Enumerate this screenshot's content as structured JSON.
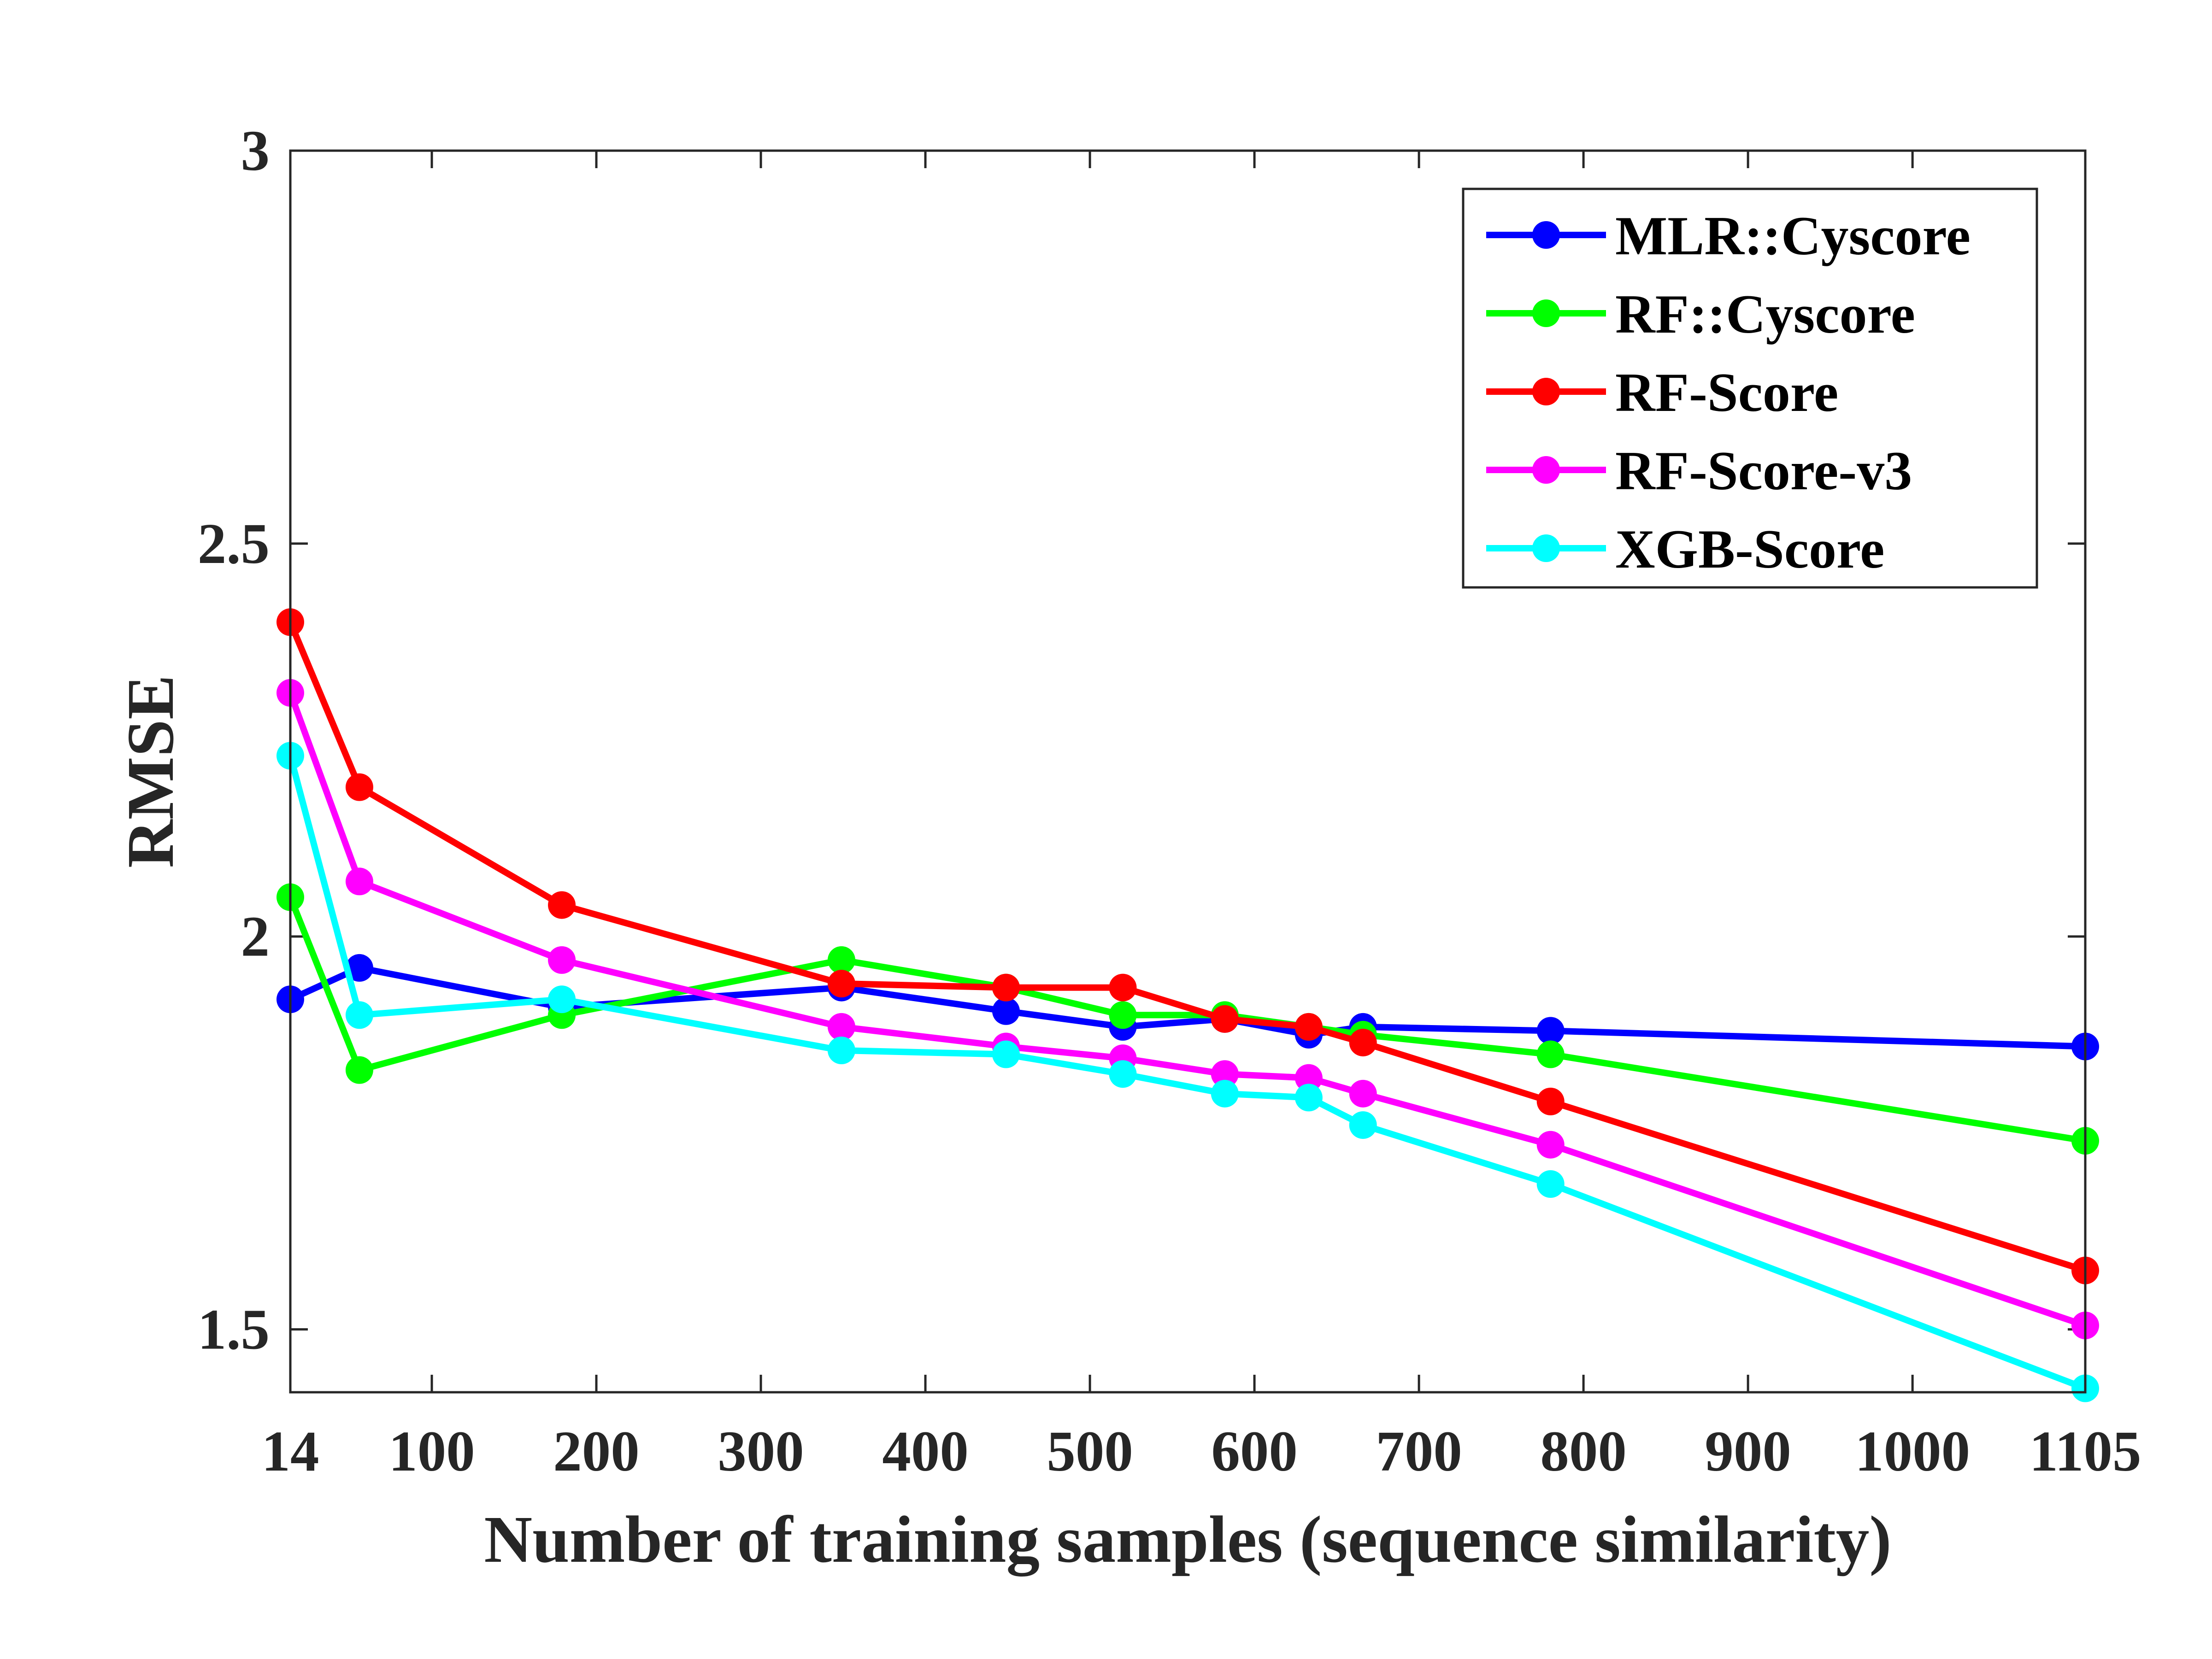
{
  "chart_data": {
    "type": "line",
    "xlabel": "Number of training samples (sequence similarity)",
    "ylabel": "RMSE",
    "xlim": [
      14,
      1105
    ],
    "ylim": [
      1.42,
      3.0
    ],
    "x_ticks": [
      14,
      100,
      200,
      300,
      400,
      500,
      600,
      700,
      800,
      900,
      1000,
      1105
    ],
    "y_ticks": [
      1.5,
      2,
      2.5,
      3
    ],
    "y_tick_labels": [
      "1.5",
      "2",
      "2.5",
      "3"
    ],
    "legend_position": "top-right",
    "grid": false,
    "x": [
      14,
      56,
      179,
      349,
      449,
      520,
      582,
      633,
      666,
      780,
      1105
    ],
    "series": [
      {
        "name": "MLR::Cyscore",
        "color": "#0000ff",
        "values": [
          1.92,
          1.96,
          1.91,
          1.935,
          1.905,
          1.885,
          1.895,
          1.875,
          1.885,
          1.88,
          1.86
        ]
      },
      {
        "name": "RF::Cyscore",
        "color": "#00ff00",
        "values": [
          2.05,
          1.83,
          1.9,
          1.97,
          1.935,
          1.9,
          1.9,
          1.885,
          1.875,
          1.85,
          1.74
        ]
      },
      {
        "name": "RF-Score",
        "color": "#ff0000",
        "values": [
          2.4,
          2.19,
          2.04,
          1.94,
          1.935,
          1.935,
          1.895,
          1.885,
          1.865,
          1.79,
          1.575
        ]
      },
      {
        "name": "RF-Score-v3",
        "color": "#ff00ff",
        "values": [
          2.31,
          2.07,
          1.97,
          1.885,
          1.86,
          1.845,
          1.825,
          1.82,
          1.8,
          1.735,
          1.505
        ]
      },
      {
        "name": "XGB-Score",
        "color": "#00ffff",
        "values": [
          2.23,
          1.9,
          1.92,
          1.855,
          1.85,
          1.825,
          1.8,
          1.795,
          1.76,
          1.685,
          1.425
        ]
      }
    ]
  }
}
